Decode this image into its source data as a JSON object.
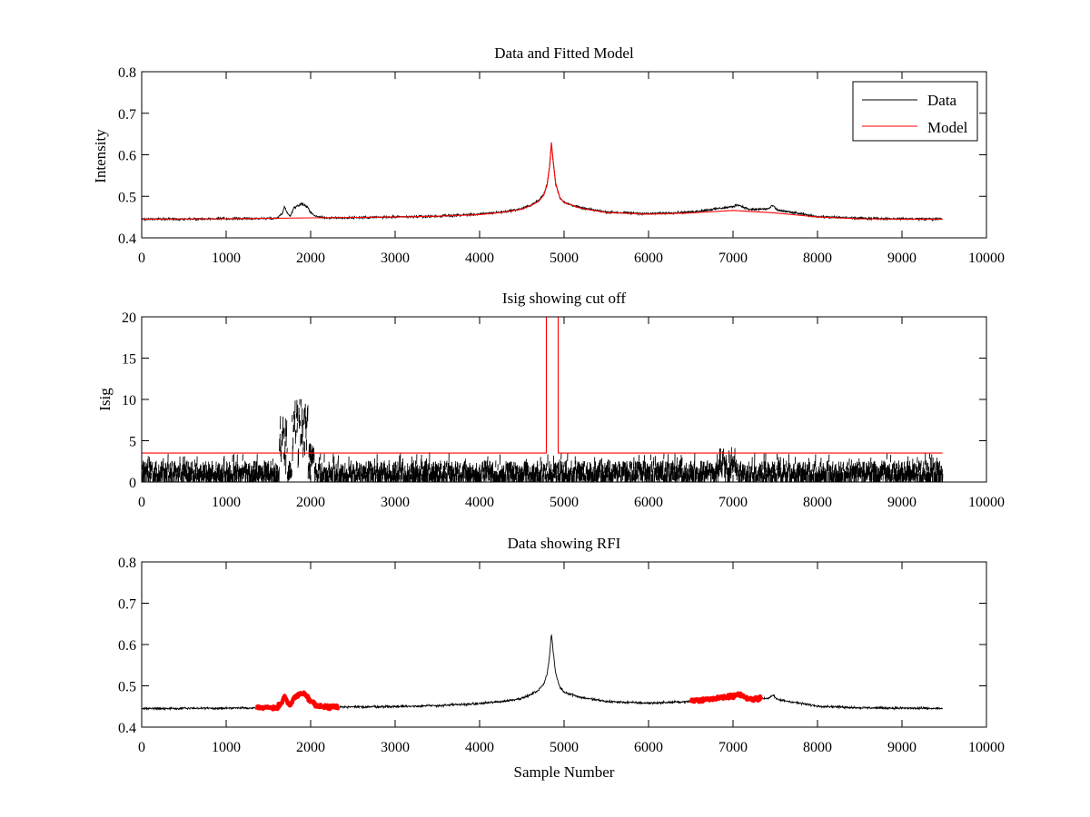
{
  "chart_data": [
    {
      "type": "line",
      "title": "Data and Fitted Model",
      "xlabel": "",
      "ylabel": "Intensity",
      "xlim": [
        0,
        10000
      ],
      "ylim": [
        0.4,
        0.8
      ],
      "xticks": [
        0,
        1000,
        2000,
        3000,
        4000,
        5000,
        6000,
        7000,
        8000,
        9000,
        10000
      ],
      "yticks": [
        0.4,
        0.5,
        0.6,
        0.7,
        0.8
      ],
      "legend": {
        "placement": "top-right",
        "entries": [
          "Data",
          "Model"
        ]
      },
      "series": [
        {
          "name": "Data",
          "color": "#000000",
          "style": "noisy",
          "noise": 0.004,
          "points": [
            [
              0,
              0.445
            ],
            [
              1000,
              0.446
            ],
            [
              1600,
              0.447
            ],
            [
              1660,
              0.458
            ],
            [
              1690,
              0.476
            ],
            [
              1720,
              0.46
            ],
            [
              1760,
              0.453
            ],
            [
              1800,
              0.472
            ],
            [
              1850,
              0.478
            ],
            [
              1900,
              0.482
            ],
            [
              1960,
              0.474
            ],
            [
              2000,
              0.462
            ],
            [
              2060,
              0.452
            ],
            [
              2200,
              0.448
            ],
            [
              3000,
              0.45
            ],
            [
              3500,
              0.452
            ],
            [
              4000,
              0.457
            ],
            [
              4300,
              0.463
            ],
            [
              4500,
              0.47
            ],
            [
              4600,
              0.478
            ],
            [
              4700,
              0.49
            ],
            [
              4760,
              0.505
            ],
            [
              4800,
              0.53
            ],
            [
              4830,
              0.575
            ],
            [
              4850,
              0.628
            ],
            [
              4870,
              0.585
            ],
            [
              4900,
              0.53
            ],
            [
              4950,
              0.497
            ],
            [
              5000,
              0.485
            ],
            [
              5200,
              0.472
            ],
            [
              5500,
              0.462
            ],
            [
              6000,
              0.458
            ],
            [
              6500,
              0.462
            ],
            [
              6800,
              0.47
            ],
            [
              7000,
              0.475
            ],
            [
              7050,
              0.48
            ],
            [
              7200,
              0.468
            ],
            [
              7420,
              0.47
            ],
            [
              7470,
              0.478
            ],
            [
              7520,
              0.467
            ],
            [
              8000,
              0.451
            ],
            [
              8500,
              0.447
            ],
            [
              9000,
              0.446
            ],
            [
              9480,
              0.445
            ]
          ]
        },
        {
          "name": "Model",
          "color": "#ff0000",
          "style": "smooth",
          "points": [
            [
              0,
              0.445
            ],
            [
              1000,
              0.446
            ],
            [
              2000,
              0.448
            ],
            [
              3000,
              0.45
            ],
            [
              3500,
              0.452
            ],
            [
              4000,
              0.456
            ],
            [
              4300,
              0.462
            ],
            [
              4500,
              0.469
            ],
            [
              4600,
              0.477
            ],
            [
              4700,
              0.488
            ],
            [
              4760,
              0.503
            ],
            [
              4800,
              0.528
            ],
            [
              4830,
              0.575
            ],
            [
              4850,
              0.63
            ],
            [
              4870,
              0.587
            ],
            [
              4900,
              0.532
            ],
            [
              4950,
              0.497
            ],
            [
              5000,
              0.485
            ],
            [
              5200,
              0.471
            ],
            [
              5500,
              0.461
            ],
            [
              6000,
              0.457
            ],
            [
              6500,
              0.46
            ],
            [
              7000,
              0.466
            ],
            [
              7500,
              0.46
            ],
            [
              8000,
              0.45
            ],
            [
              8500,
              0.446
            ],
            [
              9000,
              0.445
            ],
            [
              9480,
              0.445
            ]
          ]
        }
      ]
    },
    {
      "type": "line",
      "title": "Isig showing cut off",
      "xlabel": "",
      "ylabel": "Isig",
      "xlim": [
        0,
        10000
      ],
      "ylim": [
        0,
        20
      ],
      "xticks": [
        0,
        1000,
        2000,
        3000,
        4000,
        5000,
        6000,
        7000,
        8000,
        9000,
        10000
      ],
      "yticks": [
        0,
        5,
        10,
        15,
        20
      ],
      "series": [
        {
          "name": "Isig",
          "color": "#000000",
          "style": "spiky",
          "baseline": 0.8,
          "spread": 1.8,
          "bursts": [
            {
              "from": 1630,
              "to": 1720,
              "level": 8.0
            },
            {
              "from": 1780,
              "to": 1970,
              "level": 10.3
            },
            {
              "from": 1970,
              "to": 2040,
              "level": 5.5
            },
            {
              "from": 6800,
              "to": 7050,
              "level": 4.3
            }
          ]
        },
        {
          "name": "Cut off",
          "color": "#ff0000",
          "style": "step",
          "points": [
            [
              0,
              3.5
            ],
            [
              4790,
              3.5
            ],
            [
              4790,
              20
            ],
            [
              4930,
              20
            ],
            [
              4930,
              3.5
            ],
            [
              9480,
              3.5
            ]
          ]
        }
      ]
    },
    {
      "type": "line",
      "title": "Data showing RFI",
      "xlabel": "Sample Number",
      "ylabel": "",
      "xlim": [
        0,
        10000
      ],
      "ylim": [
        0.4,
        0.8
      ],
      "xticks": [
        0,
        1000,
        2000,
        3000,
        4000,
        5000,
        6000,
        7000,
        8000,
        9000,
        10000
      ],
      "yticks": [
        0.4,
        0.5,
        0.6,
        0.7,
        0.8
      ],
      "series": [
        {
          "name": "Data",
          "color": "#000000",
          "style": "noisy",
          "noise": 0.004,
          "points": [
            [
              0,
              0.445
            ],
            [
              1000,
              0.446
            ],
            [
              1600,
              0.447
            ],
            [
              1660,
              0.458
            ],
            [
              1690,
              0.476
            ],
            [
              1720,
              0.46
            ],
            [
              1760,
              0.453
            ],
            [
              1800,
              0.472
            ],
            [
              1850,
              0.478
            ],
            [
              1900,
              0.482
            ],
            [
              1960,
              0.474
            ],
            [
              2000,
              0.462
            ],
            [
              2060,
              0.452
            ],
            [
              2200,
              0.448
            ],
            [
              3000,
              0.45
            ],
            [
              3500,
              0.452
            ],
            [
              4000,
              0.457
            ],
            [
              4300,
              0.463
            ],
            [
              4500,
              0.47
            ],
            [
              4600,
              0.478
            ],
            [
              4700,
              0.49
            ],
            [
              4760,
              0.505
            ],
            [
              4800,
              0.53
            ],
            [
              4830,
              0.575
            ],
            [
              4850,
              0.628
            ],
            [
              4870,
              0.585
            ],
            [
              4900,
              0.53
            ],
            [
              4950,
              0.497
            ],
            [
              5000,
              0.485
            ],
            [
              5200,
              0.472
            ],
            [
              5500,
              0.462
            ],
            [
              6000,
              0.458
            ],
            [
              6500,
              0.462
            ],
            [
              6800,
              0.47
            ],
            [
              7000,
              0.475
            ],
            [
              7050,
              0.48
            ],
            [
              7200,
              0.468
            ],
            [
              7420,
              0.47
            ],
            [
              7470,
              0.478
            ],
            [
              7520,
              0.467
            ],
            [
              8000,
              0.451
            ],
            [
              8500,
              0.447
            ],
            [
              9000,
              0.446
            ],
            [
              9480,
              0.445
            ]
          ]
        },
        {
          "name": "RFI",
          "color": "#ff0000",
          "style": "thick-noisy",
          "noise": 0.007,
          "ranges": [
            [
              1350,
              2330
            ],
            [
              6500,
              7340
            ]
          ]
        }
      ]
    }
  ]
}
